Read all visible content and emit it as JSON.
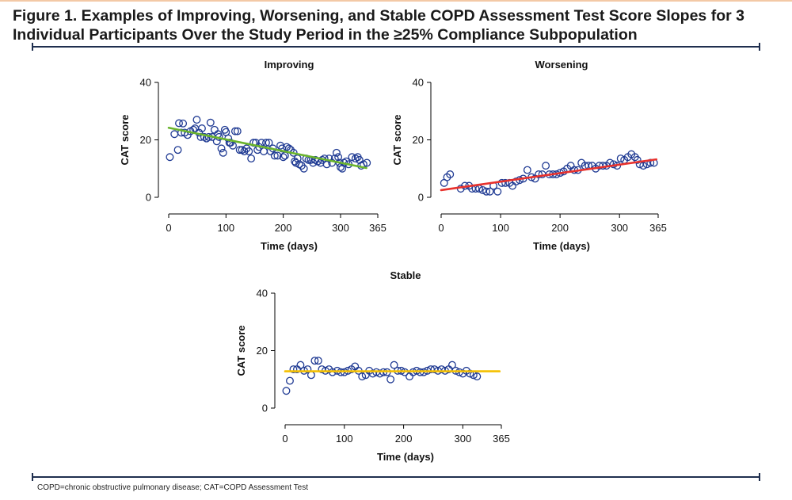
{
  "figure_title": "Figure 1. Examples of Improving, Worsening, and Stable COPD Assessment Test Score Slopes for 3 Individual Participants Over the Study Period in the ≥25% Compliance Subpopulation",
  "footnote": "COPD=chronic obstructive pulmonary disease; CAT=COPD Assessment Test",
  "colors": {
    "marker": "#1f3a93",
    "improving_fit": "#6ab42d",
    "worsening_fit": "#e8312c",
    "stable_fit": "#f5c000",
    "axis": "#000000"
  },
  "chart_data": [
    {
      "type": "scatter",
      "title": "Improving",
      "xlabel": "Time (days)",
      "ylabel": "CAT score",
      "xlim": [
        0,
        365
      ],
      "ylim": [
        0,
        40
      ],
      "xticks": [
        "0",
        "100",
        "200",
        "300",
        "365"
      ],
      "yticks": [
        "0",
        "20",
        "40"
      ],
      "fit": {
        "x": [
          0,
          345
        ],
        "y": [
          24.2,
          10.2
        ]
      },
      "points": [
        [
          2,
          14
        ],
        [
          10,
          22
        ],
        [
          16,
          16.5
        ],
        [
          18,
          25.8
        ],
        [
          22,
          22.5
        ],
        [
          25,
          25.7
        ],
        [
          28,
          22.5
        ],
        [
          33,
          21.7
        ],
        [
          38,
          23
        ],
        [
          43,
          23.5
        ],
        [
          46,
          24
        ],
        [
          49,
          27
        ],
        [
          53,
          22.5
        ],
        [
          56,
          21
        ],
        [
          58,
          24
        ],
        [
          62,
          21
        ],
        [
          66,
          20.5
        ],
        [
          70,
          21
        ],
        [
          73,
          26
        ],
        [
          76,
          21
        ],
        [
          80,
          23.5
        ],
        [
          84,
          19.5
        ],
        [
          86,
          22
        ],
        [
          88,
          21
        ],
        [
          92,
          17
        ],
        [
          95,
          15.5
        ],
        [
          98,
          23.5
        ],
        [
          100,
          22.7
        ],
        [
          104,
          20.5
        ],
        [
          106,
          19
        ],
        [
          108,
          19
        ],
        [
          112,
          18
        ],
        [
          116,
          23
        ],
        [
          120,
          23
        ],
        [
          124,
          16.5
        ],
        [
          128,
          16.5
        ],
        [
          132,
          16
        ],
        [
          136,
          17
        ],
        [
          140,
          16
        ],
        [
          144,
          13.5
        ],
        [
          148,
          19
        ],
        [
          152,
          19
        ],
        [
          155,
          16.5
        ],
        [
          158,
          17.5
        ],
        [
          162,
          19
        ],
        [
          166,
          16
        ],
        [
          170,
          19
        ],
        [
          175,
          19
        ],
        [
          178,
          16
        ],
        [
          182,
          17
        ],
        [
          185,
          14.5
        ],
        [
          190,
          14.5
        ],
        [
          195,
          18
        ],
        [
          198,
          17
        ],
        [
          200,
          14
        ],
        [
          203,
          14.5
        ],
        [
          206,
          17.5
        ],
        [
          210,
          17
        ],
        [
          213,
          16.5
        ],
        [
          218,
          15.5
        ],
        [
          220,
          12.5
        ],
        [
          222,
          12
        ],
        [
          225,
          13.5
        ],
        [
          228,
          11.5
        ],
        [
          232,
          11
        ],
        [
          236,
          10
        ],
        [
          240,
          13.5
        ],
        [
          244,
          13
        ],
        [
          248,
          13
        ],
        [
          252,
          12
        ],
        [
          256,
          13
        ],
        [
          260,
          12.5
        ],
        [
          265,
          12
        ],
        [
          268,
          13
        ],
        [
          272,
          13.5
        ],
        [
          276,
          11.5
        ],
        [
          280,
          13.5
        ],
        [
          285,
          12
        ],
        [
          290,
          13.5
        ],
        [
          293,
          15.5
        ],
        [
          296,
          14
        ],
        [
          298,
          12
        ],
        [
          300,
          10.5
        ],
        [
          303,
          10
        ],
        [
          306,
          12
        ],
        [
          310,
          12.5
        ],
        [
          314,
          11.5
        ],
        [
          320,
          14
        ],
        [
          326,
          13.5
        ],
        [
          330,
          14
        ],
        [
          333,
          13
        ],
        [
          336,
          11
        ],
        [
          340,
          11.5
        ],
        [
          346,
          12
        ]
      ]
    },
    {
      "type": "scatter",
      "title": "Worsening",
      "xlabel": "Time (days)",
      "ylabel": "CAT score",
      "xlim": [
        0,
        365
      ],
      "ylim": [
        0,
        40
      ],
      "xticks": [
        "0",
        "100",
        "200",
        "300",
        "365"
      ],
      "yticks": [
        "0",
        "20",
        "40"
      ],
      "fit": {
        "x": [
          0,
          362
        ],
        "y": [
          2.5,
          13.2
        ]
      },
      "points": [
        [
          5,
          5
        ],
        [
          10,
          7
        ],
        [
          15,
          8
        ],
        [
          33,
          3
        ],
        [
          40,
          4
        ],
        [
          47,
          4
        ],
        [
          52,
          3
        ],
        [
          58,
          3
        ],
        [
          64,
          3
        ],
        [
          70,
          2.5
        ],
        [
          76,
          2
        ],
        [
          82,
          2
        ],
        [
          88,
          4
        ],
        [
          95,
          2
        ],
        [
          102,
          5
        ],
        [
          108,
          5
        ],
        [
          115,
          5
        ],
        [
          120,
          4
        ],
        [
          126,
          5.5
        ],
        [
          132,
          6
        ],
        [
          138,
          6.5
        ],
        [
          145,
          9.5
        ],
        [
          152,
          7
        ],
        [
          158,
          6.5
        ],
        [
          164,
          8
        ],
        [
          170,
          8
        ],
        [
          176,
          11
        ],
        [
          182,
          8
        ],
        [
          188,
          8
        ],
        [
          194,
          8
        ],
        [
          200,
          8.5
        ],
        [
          206,
          9
        ],
        [
          212,
          10
        ],
        [
          218,
          11
        ],
        [
          224,
          9.5
        ],
        [
          230,
          9.5
        ],
        [
          236,
          12
        ],
        [
          242,
          11
        ],
        [
          248,
          11
        ],
        [
          254,
          11
        ],
        [
          260,
          10
        ],
        [
          266,
          11
        ],
        [
          272,
          11
        ],
        [
          278,
          11
        ],
        [
          284,
          12
        ],
        [
          290,
          11.5
        ],
        [
          296,
          11
        ],
        [
          302,
          13.5
        ],
        [
          308,
          13
        ],
        [
          314,
          14
        ],
        [
          320,
          15
        ],
        [
          326,
          14
        ],
        [
          330,
          13
        ],
        [
          334,
          11.5
        ],
        [
          340,
          11
        ],
        [
          346,
          11.5
        ],
        [
          352,
          12
        ],
        [
          358,
          12
        ]
      ]
    },
    {
      "type": "scatter",
      "title": "Stable",
      "xlabel": "Time (days)",
      "ylabel": "CAT score",
      "xlim": [
        0,
        365
      ],
      "ylim": [
        0,
        40
      ],
      "xticks": [
        "0",
        "100",
        "200",
        "300",
        "365"
      ],
      "yticks": [
        "0",
        "20",
        "40"
      ],
      "fit": {
        "x": [
          0,
          362
        ],
        "y": [
          12.8,
          12.8
        ]
      },
      "points": [
        [
          2,
          6
        ],
        [
          8,
          9.5
        ],
        [
          14,
          13.5
        ],
        [
          20,
          13.5
        ],
        [
          26,
          15
        ],
        [
          32,
          13
        ],
        [
          38,
          13.5
        ],
        [
          44,
          11.5
        ],
        [
          50,
          16.5
        ],
        [
          56,
          16.5
        ],
        [
          62,
          13.5
        ],
        [
          68,
          13
        ],
        [
          74,
          13.5
        ],
        [
          80,
          12.5
        ],
        [
          88,
          13
        ],
        [
          94,
          12.5
        ],
        [
          100,
          12.5
        ],
        [
          106,
          13
        ],
        [
          112,
          13.5
        ],
        [
          118,
          14.5
        ],
        [
          124,
          13
        ],
        [
          130,
          11
        ],
        [
          136,
          11.5
        ],
        [
          142,
          13
        ],
        [
          148,
          12
        ],
        [
          154,
          12.5
        ],
        [
          160,
          12
        ],
        [
          166,
          12.5
        ],
        [
          172,
          12.5
        ],
        [
          178,
          10
        ],
        [
          184,
          15
        ],
        [
          190,
          13
        ],
        [
          196,
          13
        ],
        [
          202,
          12.5
        ],
        [
          210,
          11
        ],
        [
          216,
          12.5
        ],
        [
          222,
          13
        ],
        [
          228,
          12.5
        ],
        [
          234,
          12.5
        ],
        [
          240,
          13
        ],
        [
          246,
          13.5
        ],
        [
          252,
          13.5
        ],
        [
          258,
          13
        ],
        [
          264,
          13.5
        ],
        [
          270,
          13
        ],
        [
          276,
          13.5
        ],
        [
          282,
          15
        ],
        [
          288,
          13
        ],
        [
          294,
          12.5
        ],
        [
          300,
          12
        ],
        [
          306,
          13
        ],
        [
          312,
          12
        ],
        [
          318,
          11.5
        ],
        [
          324,
          11
        ]
      ]
    }
  ]
}
